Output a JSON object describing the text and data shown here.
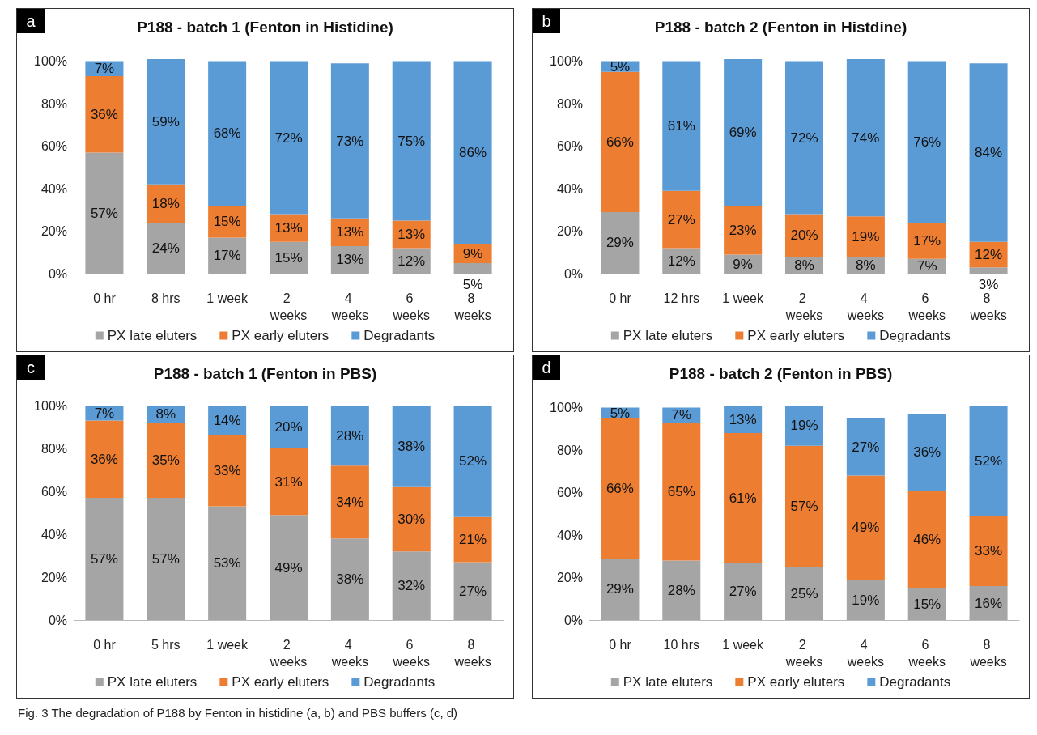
{
  "chart_data": [
    {
      "type": "bar",
      "stacked": true,
      "title": "P188 - batch 1 (Fenton in Histidine)",
      "annotations": [
        "a"
      ],
      "categories": [
        "0 hr",
        "8 hrs",
        "1 week",
        "2 weeks",
        "4 weeks",
        "6 weeks",
        "8 weeks"
      ],
      "ylim": [
        0,
        101
      ],
      "yticks": [
        {
          "value": 0,
          "label": "0%"
        },
        {
          "value": 20,
          "label": "20%"
        },
        {
          "value": 40,
          "label": "40%"
        },
        {
          "value": 60,
          "label": "60%"
        },
        {
          "value": 80,
          "label": "80%"
        },
        {
          "value": 100,
          "label": "100%"
        }
      ],
      "grid": false,
      "legend": "bottom",
      "series": [
        {
          "name": "PX late eluters",
          "color": "#a5a5a5",
          "values": [
            57,
            24,
            17,
            15,
            13,
            12,
            5
          ],
          "value_labels": [
            "57%",
            "24%",
            "17%",
            "15%",
            "13%",
            "12%",
            "5%"
          ]
        },
        {
          "name": "PX early eluters",
          "color": "#ed7d31",
          "values": [
            36,
            18,
            15,
            13,
            13,
            13,
            9
          ],
          "value_labels": [
            "36%",
            "18%",
            "15%",
            "13%",
            "13%",
            "13%",
            "9%"
          ]
        },
        {
          "name": "Degradants",
          "color": "#5b9bd5",
          "values": [
            7,
            59,
            68,
            72,
            73,
            75,
            86
          ],
          "value_labels": [
            "7%",
            "59%",
            "68%",
            "72%",
            "73%",
            "75%",
            "86%"
          ]
        }
      ]
    },
    {
      "type": "bar",
      "stacked": true,
      "title": "P188 - batch 2 (Fenton in Histdine)",
      "annotations": [
        "b"
      ],
      "categories": [
        "0 hr",
        "12 hrs",
        "1 week",
        "2 weeks",
        "4 weeks",
        "6 weeks",
        "8 weeks"
      ],
      "ylim": [
        0,
        101
      ],
      "yticks": [
        {
          "value": 0,
          "label": "0%"
        },
        {
          "value": 20,
          "label": "20%"
        },
        {
          "value": 40,
          "label": "40%"
        },
        {
          "value": 60,
          "label": "60%"
        },
        {
          "value": 80,
          "label": "80%"
        },
        {
          "value": 100,
          "label": "100%"
        }
      ],
      "grid": false,
      "legend": "bottom",
      "series": [
        {
          "name": "PX late eluters",
          "color": "#a5a5a5",
          "values": [
            29,
            12,
            9,
            8,
            8,
            7,
            3
          ],
          "value_labels": [
            "29%",
            "12%",
            "9%",
            "8%",
            "8%",
            "7%",
            "3%"
          ]
        },
        {
          "name": "PX early eluters",
          "color": "#ed7d31",
          "values": [
            66,
            27,
            23,
            20,
            19,
            17,
            12
          ],
          "value_labels": [
            "66%",
            "27%",
            "23%",
            "20%",
            "19%",
            "17%",
            "12%"
          ]
        },
        {
          "name": "Degradants",
          "color": "#5b9bd5",
          "values": [
            5,
            61,
            69,
            72,
            74,
            76,
            84
          ],
          "value_labels": [
            "5%",
            "61%",
            "69%",
            "72%",
            "74%",
            "76%",
            "84%"
          ]
        }
      ]
    },
    {
      "type": "bar",
      "stacked": true,
      "title": "P188 - batch 1 (Fenton in PBS)",
      "annotations": [
        "c"
      ],
      "categories": [
        "0 hr",
        "5 hrs",
        "1 week",
        "2 weeks",
        "4 weeks",
        "6 weeks",
        "8 weeks"
      ],
      "ylim": [
        0,
        100
      ],
      "yticks": [
        {
          "value": 0,
          "label": "0%"
        },
        {
          "value": 20,
          "label": "20%"
        },
        {
          "value": 40,
          "label": "40%"
        },
        {
          "value": 60,
          "label": "60%"
        },
        {
          "value": 80,
          "label": "80%"
        },
        {
          "value": 100,
          "label": "100%"
        }
      ],
      "grid": false,
      "legend": "bottom",
      "series": [
        {
          "name": "PX late eluters",
          "color": "#a5a5a5",
          "values": [
            57,
            57,
            53,
            49,
            38,
            32,
            27
          ],
          "value_labels": [
            "57%",
            "57%",
            "53%",
            "49%",
            "38%",
            "32%",
            "27%"
          ]
        },
        {
          "name": "PX early eluters",
          "color": "#ed7d31",
          "values": [
            36,
            35,
            33,
            31,
            34,
            30,
            21
          ],
          "value_labels": [
            "36%",
            "35%",
            "33%",
            "31%",
            "34%",
            "30%",
            "21%"
          ]
        },
        {
          "name": "Degradants",
          "color": "#5b9bd5",
          "values": [
            7,
            8,
            14,
            20,
            28,
            38,
            52
          ],
          "value_labels": [
            "7%",
            "8%",
            "14%",
            "20%",
            "28%",
            "38%",
            "52%"
          ]
        }
      ]
    },
    {
      "type": "bar",
      "stacked": true,
      "title": "P188 - batch 2 (Fenton in PBS)",
      "annotations": [
        "d",
        "Fig. 3  The degradation of P188 by Fenton in histidine (a, b) and PBS buffers (c, d)"
      ],
      "categories": [
        "0 hr",
        "10 hrs",
        "1 week",
        "2 weeks",
        "4 weeks",
        "6 weeks",
        "8 weeks"
      ],
      "ylim": [
        0,
        101
      ],
      "yticks": [
        {
          "value": 0,
          "label": "0%"
        },
        {
          "value": 20,
          "label": "20%"
        },
        {
          "value": 40,
          "label": "40%"
        },
        {
          "value": 60,
          "label": "60%"
        },
        {
          "value": 80,
          "label": "80%"
        },
        {
          "value": 100,
          "label": "100%"
        }
      ],
      "grid": false,
      "legend": "bottom",
      "series": [
        {
          "name": "PX late eluters",
          "color": "#a5a5a5",
          "values": [
            29,
            28,
            27,
            25,
            19,
            15,
            16
          ],
          "value_labels": [
            "29%",
            "28%",
            "27%",
            "25%",
            "19%",
            "15%",
            "16%"
          ]
        },
        {
          "name": "PX early eluters",
          "color": "#ed7d31",
          "values": [
            66,
            65,
            61,
            57,
            49,
            46,
            33
          ],
          "value_labels": [
            "66%",
            "65%",
            "61%",
            "57%",
            "49%",
            "46%",
            "33%"
          ]
        },
        {
          "name": "Degradants",
          "color": "#5b9bd5",
          "values": [
            5,
            7,
            13,
            19,
            27,
            36,
            52
          ],
          "value_labels": [
            "5%",
            "7%",
            "13%",
            "19%",
            "27%",
            "36%",
            "52%"
          ]
        }
      ]
    }
  ]
}
